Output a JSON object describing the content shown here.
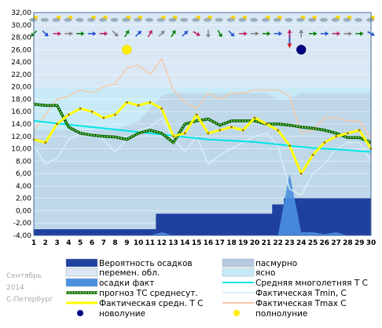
{
  "caption": {
    "month": "Сентябрь",
    "year": "2014",
    "city": "С-Петербург"
  },
  "chart_data": {
    "type": "line",
    "ylim": [
      -4,
      32
    ],
    "yticks": [
      "-4,00",
      "-2,00",
      "0,00",
      "2,00",
      "4,00",
      "6,00",
      "8,00",
      "10,00",
      "12,00",
      "14,00",
      "16,00",
      "18,00",
      "20,00",
      "22,00",
      "24,00",
      "26,00",
      "28,00",
      "30,00",
      "32,00"
    ],
    "days": [
      1,
      2,
      3,
      4,
      5,
      6,
      7,
      8,
      9,
      10,
      11,
      12,
      13,
      14,
      15,
      16,
      17,
      18,
      19,
      20,
      21,
      22,
      23,
      24,
      25,
      26,
      27,
      28,
      29,
      30
    ],
    "xticks": [
      "1",
      "2",
      "3",
      "4",
      "5",
      "6",
      "7",
      "8",
      "9",
      "10",
      "11",
      "12",
      "13",
      "14",
      "15",
      "16",
      "17",
      "18",
      "19",
      "20",
      "21",
      "22",
      "23",
      "24",
      "25",
      "26",
      "27",
      "28",
      "29",
      "30"
    ],
    "series": [
      {
        "key": "fact_mean",
        "name": "Фактическая средн. Т С",
        "color": "#ffff00",
        "values": [
          11.5,
          11.0,
          14.0,
          15.5,
          16.5,
          16.0,
          15.0,
          15.5,
          17.5,
          17.0,
          17.5,
          16.5,
          12.0,
          12.5,
          15.5,
          12.5,
          13.0,
          13.5,
          13.0,
          15.0,
          14.0,
          13.0,
          10.5,
          6.0,
          9.0,
          11.0,
          12.0,
          12.5,
          13.0,
          10.0
        ]
      },
      {
        "key": "fact_min",
        "name": "Фактическая Tmin, С",
        "color": "#d8f0f8",
        "values": [
          10.5,
          7.5,
          8.5,
          11.5,
          12.5,
          12.5,
          11.5,
          9.5,
          11.5,
          13.0,
          13.5,
          15.0,
          11.5,
          9.5,
          12.0,
          7.5,
          9.0,
          10.0,
          11.0,
          12.0,
          12.5,
          10.5,
          3.5,
          2.5,
          6.0,
          7.5,
          10.0,
          11.0,
          11.0,
          8.0
        ]
      },
      {
        "key": "fact_max",
        "name": "Фактическая Tmax С",
        "color": "#f5c8a8",
        "values": [
          13.0,
          15.5,
          18.0,
          18.5,
          19.5,
          19.0,
          20.0,
          20.5,
          23.0,
          23.5,
          22.0,
          24.5,
          19.5,
          17.5,
          16.5,
          19.0,
          18.0,
          19.0,
          19.0,
          19.5,
          19.5,
          19.5,
          18.5,
          12.5,
          13.0,
          15.0,
          15.0,
          14.5,
          14.5,
          11.5
        ]
      },
      {
        "key": "forecast_mean",
        "name": "прогноз ТС среднесут.",
        "color": "#008000",
        "values": [
          17.2,
          17.0,
          17.0,
          13.5,
          12.5,
          12.2,
          12.0,
          11.9,
          11.5,
          12.5,
          13.0,
          12.5,
          11.0,
          14.0,
          14.5,
          14.8,
          13.8,
          14.5,
          14.5,
          14.5,
          14.0,
          14.0,
          13.8,
          13.5,
          13.3,
          13.0,
          12.5,
          11.8,
          11.8,
          11.0
        ]
      },
      {
        "key": "norm",
        "name": "Средняя многолетняя Т С",
        "color": "#00e5e5",
        "values": [
          14.5,
          14.3,
          14.1,
          13.9,
          13.7,
          13.5,
          13.3,
          13.1,
          12.9,
          12.7,
          12.5,
          12.3,
          12.1,
          11.9,
          11.7,
          11.5,
          11.4,
          11.3,
          11.2,
          11.1,
          10.9,
          10.7,
          10.5,
          10.3,
          10.1,
          10.0,
          9.9,
          9.8,
          9.6,
          9.5
        ]
      },
      {
        "key": "precip_fact",
        "name": "осадки факт",
        "color": "#4a90e0",
        "values": [
          0,
          0,
          0,
          0,
          0,
          0,
          0,
          0,
          0,
          0,
          0,
          0.5,
          0,
          0,
          0,
          0,
          0,
          0,
          0,
          0,
          0,
          0,
          10.0,
          0.5,
          0.5,
          0.2,
          0.5,
          0,
          0,
          0
        ]
      },
      {
        "key": "precip_prob",
        "name": "Вероятность осадков",
        "color": "#2040a0",
        "values": [
          1,
          1,
          1,
          1,
          1,
          1,
          1,
          1,
          1,
          1,
          1,
          3.5,
          3.5,
          3.5,
          3.5,
          3.5,
          3.5,
          3.5,
          3.5,
          3.5,
          3.5,
          5,
          6,
          6,
          6,
          6,
          6,
          6,
          6,
          6
        ]
      }
    ],
    "cloud_bands": {
      "overcast": {
        "name": "пасмурно",
        "color": "#b8c8de"
      },
      "variable": {
        "name": "перемен. обл.",
        "color": "#dde8f4"
      },
      "clear": {
        "name": "ясно",
        "color": "#c8eaf7"
      }
    },
    "moon": [
      {
        "day": 9,
        "value": 26.0,
        "type": "full",
        "name": "полнолуние",
        "color": "#ffee00"
      },
      {
        "day": 24,
        "value": 26.0,
        "type": "new",
        "name": "новолуние",
        "color": "#000080"
      }
    ],
    "wind_row_icons": "wind-direction-arrow",
    "weather_row_icons": "sun-cloud-icon",
    "legend": [
      {
        "key": "precip_prob",
        "label": "Вероятность осадков",
        "swatch": "box",
        "color": "#2040a0"
      },
      {
        "key": "overcast",
        "label": "пасмурно",
        "swatch": "box",
        "color": "#b8c8de"
      },
      {
        "key": "variable",
        "label": "перемен. обл.",
        "swatch": "box",
        "color": "#dde8f4"
      },
      {
        "key": "clear",
        "label": "ясно",
        "swatch": "box",
        "color": "#c8eaf7"
      },
      {
        "key": "precip_fact",
        "label": "осадки факт",
        "swatch": "box",
        "color": "#4a90e0"
      },
      {
        "key": "norm",
        "label": "Средняя многолетняя Т С",
        "swatch": "line",
        "color": "#00e5e5"
      },
      {
        "key": "forecast_mean",
        "label": "прогноз ТС среднесут.",
        "swatch": "dotline",
        "color": "#008000"
      },
      {
        "key": "fact_min",
        "label": "Фактическая Tmin, С",
        "swatch": "line",
        "color": "#d8f0f8"
      },
      {
        "key": "fact_mean",
        "label": "Фактическая средн. Т С",
        "swatch": "thickline",
        "color": "#ffff00"
      },
      {
        "key": "fact_max",
        "label": "Фактическая Tmax С",
        "swatch": "line",
        "color": "#f5c8a8"
      },
      {
        "key": "new_moon",
        "label": "новолуние",
        "swatch": "dot",
        "color": "#000080"
      },
      {
        "key": "full_moon",
        "label": "полнолуние",
        "swatch": "dot",
        "color": "#ffee00"
      }
    ]
  }
}
